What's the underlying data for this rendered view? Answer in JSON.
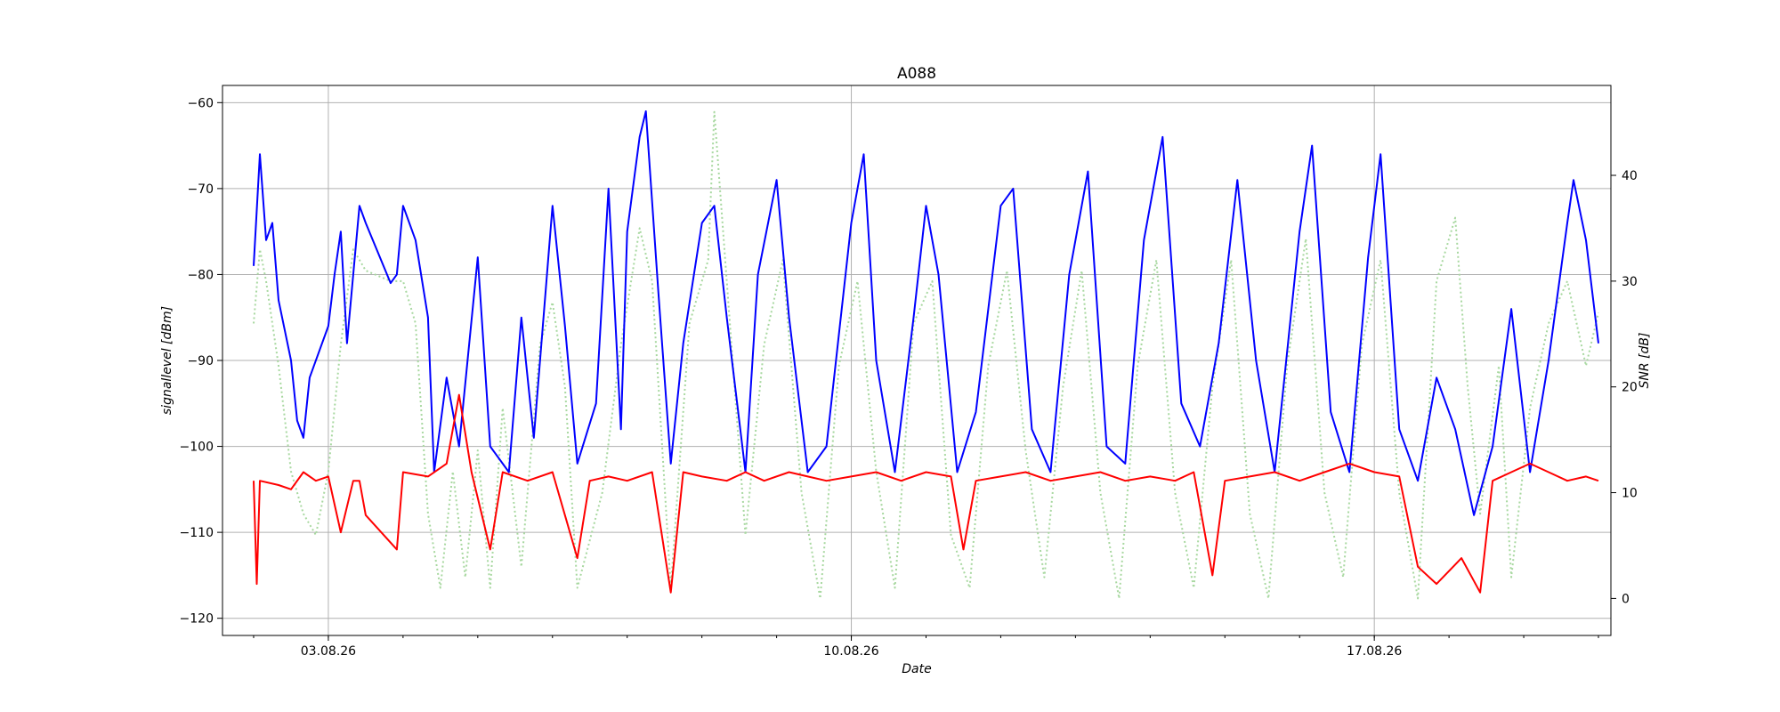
{
  "chart_data": {
    "type": "line",
    "title": "A088",
    "xlabel": "Date",
    "ylabel_left": "signallevel [dBm]",
    "ylabel_right": "SNR [dB]",
    "x_ticks": [
      "03.08.26",
      "10.08.26",
      "17.08.26"
    ],
    "x_range": [
      "01.08.26 14:00",
      "20.08.26 04:00"
    ],
    "y_left_ticks": [
      -60,
      -70,
      -80,
      -90,
      -100,
      -110,
      -120
    ],
    "y_left_range": [
      -122,
      -58
    ],
    "y_right_ticks": [
      0,
      10,
      20,
      30,
      40
    ],
    "y_right_range": [
      -3.5,
      48.5
    ],
    "grid": true,
    "series": [
      {
        "axis": "left",
        "color": "#0000ff",
        "style": "solid",
        "points": [
          [
            "02.08.26 00:00",
            -79
          ],
          [
            "02.08.26 02:00",
            -66
          ],
          [
            "02.08.26 04:00",
            -76
          ],
          [
            "02.08.26 06:00",
            -74
          ],
          [
            "02.08.26 08:00",
            -83
          ],
          [
            "02.08.26 12:00",
            -90
          ],
          [
            "02.08.26 14:00",
            -97
          ],
          [
            "02.08.26 16:00",
            -99
          ],
          [
            "02.08.26 18:00",
            -92
          ],
          [
            "02.08.26 22:00",
            -88
          ],
          [
            "03.08.26 00:00",
            -86
          ],
          [
            "03.08.26 02:00",
            -80
          ],
          [
            "03.08.26 04:00",
            -75
          ],
          [
            "03.08.26 06:00",
            -88
          ],
          [
            "03.08.26 08:00",
            -80
          ],
          [
            "03.08.26 10:00",
            -72
          ],
          [
            "03.08.26 12:00",
            -74
          ],
          [
            "03.08.26 20:00",
            -81
          ],
          [
            "03.08.26 22:00",
            -80
          ],
          [
            "04.08.26 00:00",
            -72
          ],
          [
            "04.08.26 04:00",
            -76
          ],
          [
            "04.08.26 08:00",
            -85
          ],
          [
            "04.08.26 10:00",
            -103
          ],
          [
            "04.08.26 14:00",
            -92
          ],
          [
            "04.08.26 18:00",
            -100
          ],
          [
            "05.08.26 00:00",
            -78
          ],
          [
            "05.08.26 04:00",
            -100
          ],
          [
            "05.08.26 10:00",
            -103
          ],
          [
            "05.08.26 14:00",
            -85
          ],
          [
            "05.08.26 18:00",
            -99
          ],
          [
            "06.08.26 00:00",
            -72
          ],
          [
            "06.08.26 04:00",
            -86
          ],
          [
            "06.08.26 08:00",
            -102
          ],
          [
            "06.08.26 14:00",
            -95
          ],
          [
            "06.08.26 18:00",
            -70
          ],
          [
            "06.08.26 22:00",
            -98
          ],
          [
            "07.08.26 00:00",
            -75
          ],
          [
            "07.08.26 04:00",
            -64
          ],
          [
            "07.08.26 06:00",
            -61
          ],
          [
            "07.08.26 10:00",
            -82
          ],
          [
            "07.08.26 14:00",
            -102
          ],
          [
            "07.08.26 18:00",
            -88
          ],
          [
            "08.08.26 00:00",
            -74
          ],
          [
            "08.08.26 04:00",
            -72
          ],
          [
            "08.08.26 08:00",
            -85
          ],
          [
            "08.08.26 14:00",
            -103
          ],
          [
            "08.08.26 18:00",
            -80
          ],
          [
            "09.08.26 00:00",
            -69
          ],
          [
            "09.08.26 04:00",
            -85
          ],
          [
            "09.08.26 10:00",
            -103
          ],
          [
            "09.08.26 16:00",
            -100
          ],
          [
            "10.08.26 00:00",
            -74
          ],
          [
            "10.08.26 04:00",
            -66
          ],
          [
            "10.08.26 08:00",
            -90
          ],
          [
            "10.08.26 14:00",
            -103
          ],
          [
            "10.08.26 20:00",
            -85
          ],
          [
            "11.08.26 00:00",
            -72
          ],
          [
            "11.08.26 04:00",
            -80
          ],
          [
            "11.08.26 10:00",
            -103
          ],
          [
            "11.08.26 16:00",
            -96
          ],
          [
            "12.08.26 00:00",
            -72
          ],
          [
            "12.08.26 04:00",
            -70
          ],
          [
            "12.08.26 10:00",
            -98
          ],
          [
            "12.08.26 16:00",
            -103
          ],
          [
            "12.08.26 22:00",
            -80
          ],
          [
            "13.08.26 04:00",
            -68
          ],
          [
            "13.08.26 10:00",
            -100
          ],
          [
            "13.08.26 16:00",
            -102
          ],
          [
            "13.08.26 22:00",
            -76
          ],
          [
            "14.08.26 04:00",
            -64
          ],
          [
            "14.08.26 10:00",
            -95
          ],
          [
            "14.08.26 16:00",
            -100
          ],
          [
            "14.08.26 22:00",
            -88
          ],
          [
            "15.08.26 04:00",
            -69
          ],
          [
            "15.08.26 10:00",
            -90
          ],
          [
            "15.08.26 16:00",
            -103
          ],
          [
            "16.08.26 00:00",
            -75
          ],
          [
            "16.08.26 04:00",
            -65
          ],
          [
            "16.08.26 10:00",
            -96
          ],
          [
            "16.08.26 16:00",
            -103
          ],
          [
            "16.08.26 22:00",
            -78
          ],
          [
            "17.08.26 02:00",
            -66
          ],
          [
            "17.08.26 08:00",
            -98
          ],
          [
            "17.08.26 14:00",
            -104
          ],
          [
            "17.08.26 20:00",
            -92
          ],
          [
            "18.08.26 02:00",
            -98
          ],
          [
            "18.08.26 08:00",
            -108
          ],
          [
            "18.08.26 14:00",
            -100
          ],
          [
            "18.08.26 20:00",
            -84
          ],
          [
            "19.08.26 02:00",
            -103
          ],
          [
            "19.08.26 08:00",
            -90
          ],
          [
            "19.08.26 14:00",
            -74
          ],
          [
            "19.08.26 16:00",
            -69
          ],
          [
            "19.08.26 20:00",
            -76
          ],
          [
            "20.08.26 00:00",
            -88
          ]
        ]
      },
      {
        "axis": "left",
        "color": "#ff0000",
        "style": "solid",
        "points": [
          [
            "02.08.26 00:00",
            -104
          ],
          [
            "02.08.26 01:00",
            -116
          ],
          [
            "02.08.26 02:00",
            -104
          ],
          [
            "02.08.26 08:00",
            -104.5
          ],
          [
            "02.08.26 12:00",
            -105
          ],
          [
            "02.08.26 16:00",
            -103
          ],
          [
            "02.08.26 20:00",
            -104
          ],
          [
            "03.08.26 00:00",
            -103.5
          ],
          [
            "03.08.26 04:00",
            -110
          ],
          [
            "03.08.26 08:00",
            -104
          ],
          [
            "03.08.26 10:00",
            -104
          ],
          [
            "03.08.26 12:00",
            -108
          ],
          [
            "03.08.26 22:00",
            -112
          ],
          [
            "04.08.26 00:00",
            -103
          ],
          [
            "04.08.26 08:00",
            -103.5
          ],
          [
            "04.08.26 14:00",
            -102
          ],
          [
            "04.08.26 18:00",
            -94
          ],
          [
            "04.08.26 22:00",
            -103
          ],
          [
            "05.08.26 04:00",
            -112
          ],
          [
            "05.08.26 08:00",
            -103
          ],
          [
            "05.08.26 16:00",
            -104
          ],
          [
            "06.08.26 00:00",
            -103
          ],
          [
            "06.08.26 08:00",
            -113
          ],
          [
            "06.08.26 12:00",
            -104
          ],
          [
            "06.08.26 18:00",
            -103.5
          ],
          [
            "07.08.26 00:00",
            -104
          ],
          [
            "07.08.26 08:00",
            -103
          ],
          [
            "07.08.26 14:00",
            -117
          ],
          [
            "07.08.26 18:00",
            -103
          ],
          [
            "08.08.26 00:00",
            -103.5
          ],
          [
            "08.08.26 08:00",
            -104
          ],
          [
            "08.08.26 14:00",
            -103
          ],
          [
            "08.08.26 20:00",
            -104
          ],
          [
            "09.08.26 04:00",
            -103
          ],
          [
            "09.08.26 10:00",
            -103.5
          ],
          [
            "09.08.26 16:00",
            -104
          ],
          [
            "10.08.26 00:00",
            -103.5
          ],
          [
            "10.08.26 08:00",
            -103
          ],
          [
            "10.08.26 16:00",
            -104
          ],
          [
            "11.08.26 00:00",
            -103
          ],
          [
            "11.08.26 08:00",
            -103.5
          ],
          [
            "11.08.26 12:00",
            -112
          ],
          [
            "11.08.26 16:00",
            -104
          ],
          [
            "12.08.26 00:00",
            -103.5
          ],
          [
            "12.08.26 08:00",
            -103
          ],
          [
            "12.08.26 16:00",
            -104
          ],
          [
            "13.08.26 00:00",
            -103.5
          ],
          [
            "13.08.26 08:00",
            -103
          ],
          [
            "13.08.26 16:00",
            -104
          ],
          [
            "14.08.26 00:00",
            -103.5
          ],
          [
            "14.08.26 08:00",
            -104
          ],
          [
            "14.08.26 14:00",
            -103
          ],
          [
            "14.08.26 20:00",
            -115
          ],
          [
            "15.08.26 00:00",
            -104
          ],
          [
            "15.08.26 08:00",
            -103.5
          ],
          [
            "15.08.26 16:00",
            -103
          ],
          [
            "16.08.26 00:00",
            -104
          ],
          [
            "16.08.26 08:00",
            -103
          ],
          [
            "16.08.26 16:00",
            -102
          ],
          [
            "17.08.26 00:00",
            -103
          ],
          [
            "17.08.26 08:00",
            -103.5
          ],
          [
            "17.08.26 14:00",
            -114
          ],
          [
            "17.08.26 20:00",
            -116
          ],
          [
            "18.08.26 04:00",
            -113
          ],
          [
            "18.08.26 10:00",
            -117
          ],
          [
            "18.08.26 14:00",
            -104
          ],
          [
            "18.08.26 20:00",
            -103
          ],
          [
            "19.08.26 02:00",
            -102
          ],
          [
            "19.08.26 08:00",
            -103
          ],
          [
            "19.08.26 14:00",
            -104
          ],
          [
            "19.08.26 20:00",
            -103.5
          ],
          [
            "20.08.26 00:00",
            -104
          ]
        ]
      },
      {
        "axis": "right",
        "color": "#a8d8a0",
        "style": "dotted",
        "points": [
          [
            "02.08.26 00:00",
            26
          ],
          [
            "02.08.26 02:00",
            33
          ],
          [
            "02.08.26 04:00",
            30
          ],
          [
            "02.08.26 08:00",
            22
          ],
          [
            "02.08.26 12:00",
            12
          ],
          [
            "02.08.26 16:00",
            8
          ],
          [
            "02.08.26 20:00",
            6
          ],
          [
            "03.08.26 00:00",
            12
          ],
          [
            "03.08.26 04:00",
            24
          ],
          [
            "03.08.26 08:00",
            33
          ],
          [
            "03.08.26 12:00",
            31
          ],
          [
            "03.08.26 20:00",
            30
          ],
          [
            "04.08.26 00:00",
            30
          ],
          [
            "04.08.26 04:00",
            26
          ],
          [
            "04.08.26 08:00",
            8
          ],
          [
            "04.08.26 12:00",
            1
          ],
          [
            "04.08.26 16:00",
            12
          ],
          [
            "04.08.26 20:00",
            2
          ],
          [
            "05.08.26 00:00",
            14
          ],
          [
            "05.08.26 04:00",
            1
          ],
          [
            "05.08.26 08:00",
            18
          ],
          [
            "05.08.26 14:00",
            3
          ],
          [
            "05.08.26 20:00",
            24
          ],
          [
            "06.08.26 00:00",
            28
          ],
          [
            "06.08.26 04:00",
            20
          ],
          [
            "06.08.26 08:00",
            1
          ],
          [
            "06.08.26 16:00",
            10
          ],
          [
            "06.08.26 22:00",
            24
          ],
          [
            "07.08.26 04:00",
            35
          ],
          [
            "07.08.26 08:00",
            30
          ],
          [
            "07.08.26 14:00",
            1
          ],
          [
            "07.08.26 20:00",
            26
          ],
          [
            "08.08.26 02:00",
            32
          ],
          [
            "08.08.26 04:00",
            46
          ],
          [
            "08.08.26 08:00",
            30
          ],
          [
            "08.08.26 14:00",
            6
          ],
          [
            "08.08.26 20:00",
            24
          ],
          [
            "09.08.26 02:00",
            32
          ],
          [
            "09.08.26 08:00",
            10
          ],
          [
            "09.08.26 14:00",
            0
          ],
          [
            "09.08.26 20:00",
            22
          ],
          [
            "10.08.26 02:00",
            30
          ],
          [
            "10.08.26 08:00",
            12
          ],
          [
            "10.08.26 14:00",
            1
          ],
          [
            "10.08.26 20:00",
            26
          ],
          [
            "11.08.26 02:00",
            30
          ],
          [
            "11.08.26 08:00",
            6
          ],
          [
            "11.08.26 14:00",
            1
          ],
          [
            "11.08.26 20:00",
            22
          ],
          [
            "12.08.26 02:00",
            31
          ],
          [
            "12.08.26 08:00",
            14
          ],
          [
            "12.08.26 14:00",
            2
          ],
          [
            "12.08.26 20:00",
            20
          ],
          [
            "13.08.26 02:00",
            31
          ],
          [
            "13.08.26 08:00",
            10
          ],
          [
            "13.08.26 14:00",
            0
          ],
          [
            "13.08.26 20:00",
            22
          ],
          [
            "14.08.26 02:00",
            32
          ],
          [
            "14.08.26 08:00",
            10
          ],
          [
            "14.08.26 14:00",
            1
          ],
          [
            "14.08.26 20:00",
            20
          ],
          [
            "15.08.26 02:00",
            32
          ],
          [
            "15.08.26 08:00",
            8
          ],
          [
            "15.08.26 14:00",
            0
          ],
          [
            "15.08.26 20:00",
            22
          ],
          [
            "16.08.26 02:00",
            34
          ],
          [
            "16.08.26 08:00",
            10
          ],
          [
            "16.08.26 14:00",
            2
          ],
          [
            "16.08.26 20:00",
            24
          ],
          [
            "17.08.26 02:00",
            32
          ],
          [
            "17.08.26 08:00",
            10
          ],
          [
            "17.08.26 14:00",
            0
          ],
          [
            "17.08.26 20:00",
            30
          ],
          [
            "18.08.26 02:00",
            36
          ],
          [
            "18.08.26 06:00",
            20
          ],
          [
            "18.08.26 10:00",
            8
          ],
          [
            "18.08.26 16:00",
            22
          ],
          [
            "18.08.26 20:00",
            2
          ],
          [
            "19.08.26 02:00",
            18
          ],
          [
            "19.08.26 08:00",
            26
          ],
          [
            "19.08.26 14:00",
            30
          ],
          [
            "19.08.26 20:00",
            22
          ],
          [
            "20.08.26 00:00",
            27
          ]
        ]
      }
    ]
  }
}
